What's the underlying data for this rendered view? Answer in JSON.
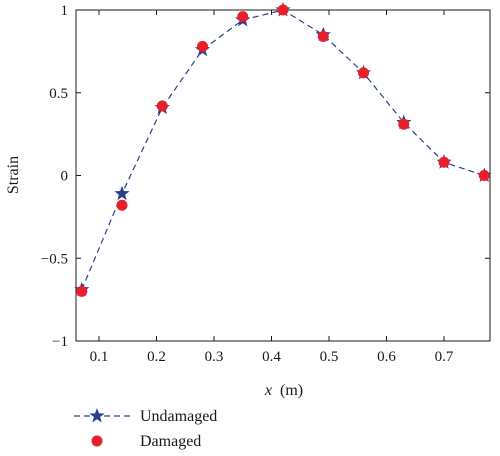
{
  "chart_data": {
    "type": "line",
    "xlabel_var": "x",
    "xlabel_unit": "(m)",
    "ylabel": "Strain",
    "xlim": [
      0.06,
      0.78
    ],
    "ylim": [
      -1,
      1
    ],
    "xticks": [
      0.1,
      0.2,
      0.3,
      0.4,
      0.5,
      0.6,
      0.7
    ],
    "yticks": [
      -1,
      -0.5,
      0,
      0.5,
      1
    ],
    "xtick_labels": [
      "0.1",
      "0.2",
      "0.3",
      "0.4",
      "0.5",
      "0.6",
      "0.7"
    ],
    "ytick_labels": [
      "−1",
      "−0.5",
      "0",
      "0.5",
      "1"
    ],
    "grid": false,
    "legend_position": "bottom-left, below plot",
    "series": [
      {
        "name": "Undamaged",
        "marker": "star",
        "line": "dashed",
        "color": "#2b3f8f",
        "x": [
          0.07,
          0.14,
          0.21,
          0.28,
          0.35,
          0.42,
          0.49,
          0.56,
          0.63,
          0.7,
          0.77
        ],
        "y": [
          -0.69,
          -0.11,
          0.41,
          0.76,
          0.94,
          1.0,
          0.85,
          0.62,
          0.32,
          0.08,
          0.0
        ]
      },
      {
        "name": "Damaged",
        "marker": "circle",
        "line": "none",
        "color": "#e8202a",
        "x": [
          0.07,
          0.14,
          0.21,
          0.28,
          0.35,
          0.42,
          0.49,
          0.56,
          0.63,
          0.7,
          0.77
        ],
        "y": [
          -0.7,
          -0.18,
          0.42,
          0.78,
          0.96,
          1.0,
          0.84,
          0.62,
          0.31,
          0.08,
          0.0
        ]
      }
    ]
  }
}
